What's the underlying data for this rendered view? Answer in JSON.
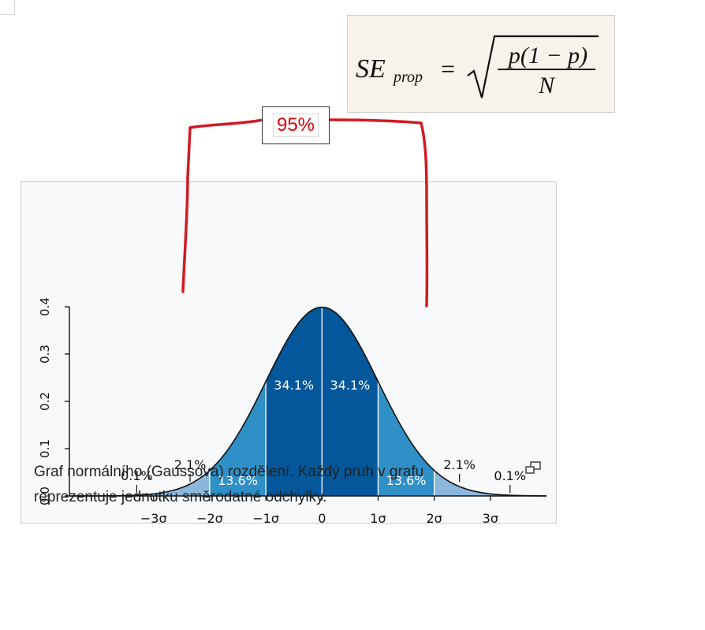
{
  "formula": {
    "lhs": "SE",
    "lhs_subscript": "prop",
    "equals": "=",
    "numerator": "p(1 − p)",
    "denominator": "N"
  },
  "annotation": {
    "label": "95%",
    "color": "#e00000"
  },
  "chart_data": {
    "type": "area",
    "distribution": "normal",
    "mean": 0,
    "sd": 1,
    "xlim": [
      -4.5,
      4.0
    ],
    "ylim": [
      0,
      0.4
    ],
    "ytick_labels": [
      "0.0",
      "0.1",
      "0.2",
      "0.3",
      "0.4"
    ],
    "ytick_values": [
      0,
      0.1,
      0.2,
      0.3,
      0.4
    ],
    "xtick_labels": [
      "−3σ",
      "−2σ",
      "−1σ",
      "0",
      "1σ",
      "2σ",
      "3σ"
    ],
    "xtick_values": [
      -3,
      -2,
      -1,
      0,
      1,
      2,
      3
    ],
    "bands": [
      {
        "from": -3,
        "to": -2,
        "label": "2.1%",
        "color": "#8bb7dc"
      },
      {
        "from": -2,
        "to": -1,
        "label": "13.6%",
        "color": "#2f8fc7"
      },
      {
        "from": -1,
        "to": 0,
        "label": "34.1%",
        "color": "#03579a"
      },
      {
        "from": 0,
        "to": 1,
        "label": "34.1%",
        "color": "#03579a"
      },
      {
        "from": 1,
        "to": 2,
        "label": "13.6%",
        "color": "#2f8fc7"
      },
      {
        "from": 2,
        "to": 3,
        "label": "2.1%",
        "color": "#8bb7dc"
      }
    ],
    "tails": [
      {
        "side": "left",
        "label": "0.1%"
      },
      {
        "side": "right",
        "label": "0.1%"
      }
    ],
    "tail_color": "#8bb7dc",
    "xlabel": "",
    "ylabel": "",
    "grid": false
  },
  "figure": {
    "caption": "Graf normálního (Gaussova) rozdělení. Každý pruh v grafu reprezentuje jednotku směrodatné odchylky."
  }
}
